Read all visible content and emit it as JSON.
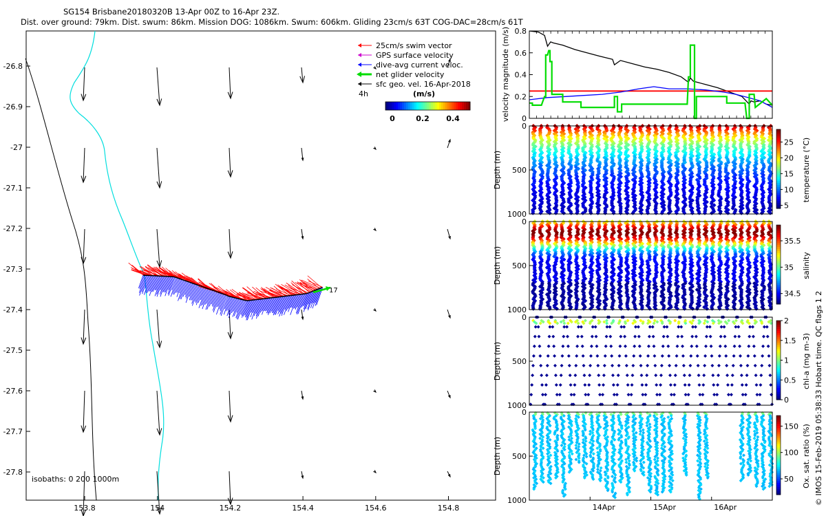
{
  "title": {
    "line1": "SG154 Brisbane20180320B 13-Apr 00Z to 16-Apr 23Z.",
    "line2": "Dist. over ground: 79km. Dist. swum: 86km. Mission DOG: 1086km. Swum: 606km. Gliding 23cm/s 63T COG-DAC=28cm/s 61T"
  },
  "colors": {
    "swim": "#ff0000",
    "gps": "#cc00cc",
    "dac": "#0000ff",
    "net": "#00dd00",
    "geo": "#000000",
    "cyan": "#00e0e0"
  },
  "map": {
    "legend": [
      {
        "label": "25cm/s swim vector",
        "color": "#ff0000"
      },
      {
        "label": "GPS surface velocity",
        "color": "#cc00cc"
      },
      {
        "label": "dive-avg current veloc.",
        "color": "#0000ff"
      },
      {
        "label": "net glider velocity",
        "color": "#00dd00"
      },
      {
        "label": "sfc geo. vel. 16-Apr-2018",
        "color": "#000000"
      }
    ],
    "legend_4h": "4h",
    "colorbar_unit": "(m/s)",
    "colorbar_ticks": [
      "0",
      "0.2",
      "0.4"
    ],
    "isobaths_label": "isobaths: 0   200   1000m",
    "end_label": "17",
    "x_ticks": [
      "153.8",
      "154",
      "154.2",
      "154.4",
      "154.6",
      "154.8"
    ],
    "y_ticks": [
      "-26.8",
      "-26.9",
      "-27",
      "-27.1",
      "-27.2",
      "-27.3",
      "-27.4",
      "-27.5",
      "-27.6",
      "-27.7",
      "-27.8"
    ]
  },
  "chart_data": [
    {
      "type": "line",
      "name": "velocity-magnitude",
      "ylabel": "velocity magnitude (m/s)",
      "ylim": [
        0,
        0.8
      ],
      "yticks": [
        "0",
        "0.2",
        "0.4",
        "0.6",
        "0.8"
      ],
      "x_days": [
        13,
        17
      ],
      "series": [
        {
          "name": "black",
          "color": "#000000",
          "x": [
            13.0,
            13.15,
            13.25,
            13.3,
            13.35,
            13.4,
            13.55,
            13.75,
            13.95,
            14.15,
            14.37,
            14.4,
            14.5,
            14.7,
            14.9,
            15.1,
            15.3,
            15.5,
            15.62,
            15.65,
            15.7,
            15.9,
            16.1,
            16.3,
            16.5,
            16.62,
            16.65,
            16.7,
            16.8,
            16.9,
            17.0
          ],
          "y": [
            0.8,
            0.79,
            0.76,
            0.66,
            0.7,
            0.69,
            0.67,
            0.63,
            0.6,
            0.57,
            0.54,
            0.49,
            0.53,
            0.5,
            0.47,
            0.45,
            0.42,
            0.38,
            0.33,
            0.37,
            0.34,
            0.31,
            0.28,
            0.24,
            0.2,
            0.13,
            0.16,
            0.15,
            0.16,
            0.13,
            0.12
          ]
        },
        {
          "name": "red",
          "color": "#ff0000",
          "x": [
            13.0,
            17.0
          ],
          "y": [
            0.25,
            0.25
          ]
        },
        {
          "name": "blue",
          "color": "#0000ff",
          "x": [
            13.0,
            13.3,
            13.6,
            13.9,
            14.2,
            14.5,
            14.8,
            15.05,
            15.3,
            15.6,
            15.9,
            16.2,
            16.4,
            16.6,
            16.8,
            17.0
          ],
          "y": [
            0.17,
            0.19,
            0.2,
            0.21,
            0.22,
            0.24,
            0.27,
            0.29,
            0.27,
            0.27,
            0.26,
            0.24,
            0.22,
            0.19,
            0.16,
            0.1
          ]
        },
        {
          "name": "green",
          "color": "#00dd00",
          "x": [
            13.0,
            13.05,
            13.05,
            13.2,
            13.25,
            13.27,
            13.27,
            13.3,
            13.32,
            13.34,
            13.34,
            13.37,
            13.37,
            13.55,
            13.55,
            13.85,
            13.85,
            14.4,
            14.4,
            14.45,
            14.45,
            14.52,
            14.52,
            15.6,
            15.62,
            15.65,
            15.65,
            15.72,
            15.72,
            15.75,
            15.75,
            16.25,
            16.25,
            16.55,
            16.58,
            16.62,
            16.62,
            16.7,
            16.72,
            16.9,
            17.0
          ],
          "y": [
            0.14,
            0.14,
            0.12,
            0.12,
            0.2,
            0.2,
            0.58,
            0.58,
            0.62,
            0.62,
            0.52,
            0.52,
            0.22,
            0.22,
            0.15,
            0.15,
            0.1,
            0.1,
            0.2,
            0.2,
            0.06,
            0.06,
            0.13,
            0.13,
            0.38,
            0.38,
            0.67,
            0.67,
            0.0,
            0.0,
            0.2,
            0.2,
            0.14,
            0.14,
            0.0,
            0.0,
            0.22,
            0.22,
            0.1,
            0.18,
            0.12
          ]
        }
      ]
    },
    {
      "type": "scatter",
      "name": "temperature-section",
      "ylabel": "Depth (m)",
      "ylim": [
        0,
        1000
      ],
      "yticks": [
        "0",
        "500",
        "1000"
      ],
      "cbar_label": "temperature (°C)",
      "cbar_ticks": [
        5,
        10,
        15,
        20,
        25
      ],
      "clim": [
        4,
        29
      ],
      "colormap": "jet",
      "field": "temperature",
      "dives_per_day": 8.5,
      "surface_value": 28,
      "deep_value": 4.5,
      "decay_m": 320
    },
    {
      "type": "scatter",
      "name": "salinity-section",
      "ylabel": "Depth (m)",
      "ylim": [
        0,
        1000
      ],
      "yticks": [
        "0",
        "500",
        "1000"
      ],
      "cbar_label": "salinity",
      "cbar_ticks": [
        34.5,
        35,
        35.5
      ],
      "clim": [
        34.3,
        35.8
      ],
      "colormap": "jet",
      "field": "salinity"
    },
    {
      "type": "scatter",
      "name": "chla-section",
      "ylabel": "Depth (m)",
      "ylim": [
        0,
        1000
      ],
      "yticks": [
        "0",
        "500",
        "1000"
      ],
      "cbar_label": "chl-a (mg m-3)",
      "cbar_ticks": [
        0,
        0.5,
        1,
        1.5,
        2
      ],
      "clim": [
        0,
        2
      ],
      "colormap": "jet",
      "field": "chla"
    },
    {
      "type": "scatter",
      "name": "oxygen-section",
      "ylabel": "Depth (m)",
      "ylim": [
        0,
        1000
      ],
      "yticks": [
        "0",
        "500",
        "1000"
      ],
      "cbar_label": "Ox. sat. ratio (%)",
      "cbar_ticks": [
        50,
        100,
        150
      ],
      "clim": [
        20,
        170
      ],
      "colormap": "jet",
      "field": "oxygen",
      "x_ticks": [
        "14Apr",
        "15Apr",
        "16Apr"
      ],
      "x_tick_days": [
        14,
        15,
        16
      ]
    }
  ],
  "side_caption": "© IMOS 15-Feb-2019 05:38:33 Hobart time. QC flags 1  2"
}
